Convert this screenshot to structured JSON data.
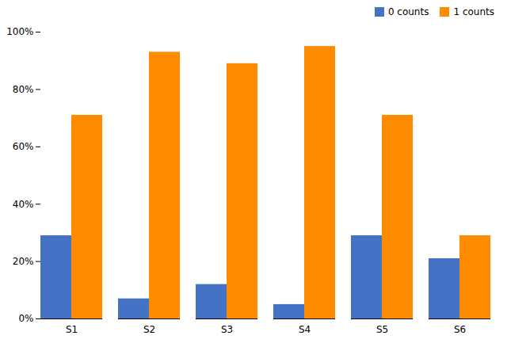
{
  "chart_data": {
    "type": "bar",
    "categories": [
      "S1",
      "S2",
      "S3",
      "S4",
      "S5",
      "S6"
    ],
    "series": [
      {
        "name": "0 counts",
        "color": "#4472c4",
        "values": [
          0.29,
          0.07,
          0.12,
          0.05,
          0.29,
          0.21
        ]
      },
      {
        "name": "1 counts",
        "color": "#ff8c00",
        "values": [
          0.71,
          0.93,
          0.89,
          0.95,
          0.71,
          0.29
        ]
      }
    ],
    "ylim": [
      0,
      1.0
    ],
    "yticks": [
      {
        "value": 0.0,
        "label": "0%"
      },
      {
        "value": 0.2,
        "label": "20%"
      },
      {
        "value": 0.4,
        "label": "40%"
      },
      {
        "value": 0.6,
        "label": "60%"
      },
      {
        "value": 0.8,
        "label": "80%"
      },
      {
        "value": 1.0,
        "label": "100%"
      }
    ],
    "legend": "upper right",
    "grid": false
  }
}
